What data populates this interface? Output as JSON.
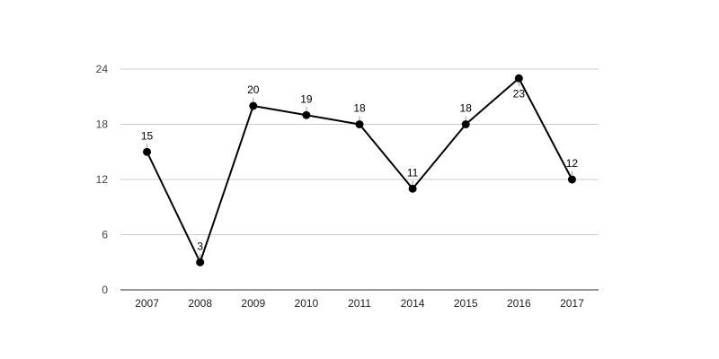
{
  "chart_data": {
    "type": "line",
    "categories": [
      "2007",
      "2008",
      "2009",
      "2010",
      "2011",
      "2014",
      "2015",
      "2016",
      "2017"
    ],
    "series": [
      {
        "values": [
          15,
          3,
          20,
          19,
          18,
          11,
          18,
          23,
          12
        ]
      }
    ],
    "data_label_position": [
      "above",
      "above",
      "above",
      "above",
      "above",
      "above",
      "above",
      "below",
      "above"
    ],
    "title": "",
    "xlabel": "",
    "ylabel": "",
    "ylim": [
      0,
      24
    ],
    "yticks": [
      0,
      6,
      12,
      18,
      24
    ],
    "grid": true,
    "legend": "none",
    "line_color": "#000000",
    "marker_color": "#000000",
    "grid_color": "#cccccc"
  }
}
